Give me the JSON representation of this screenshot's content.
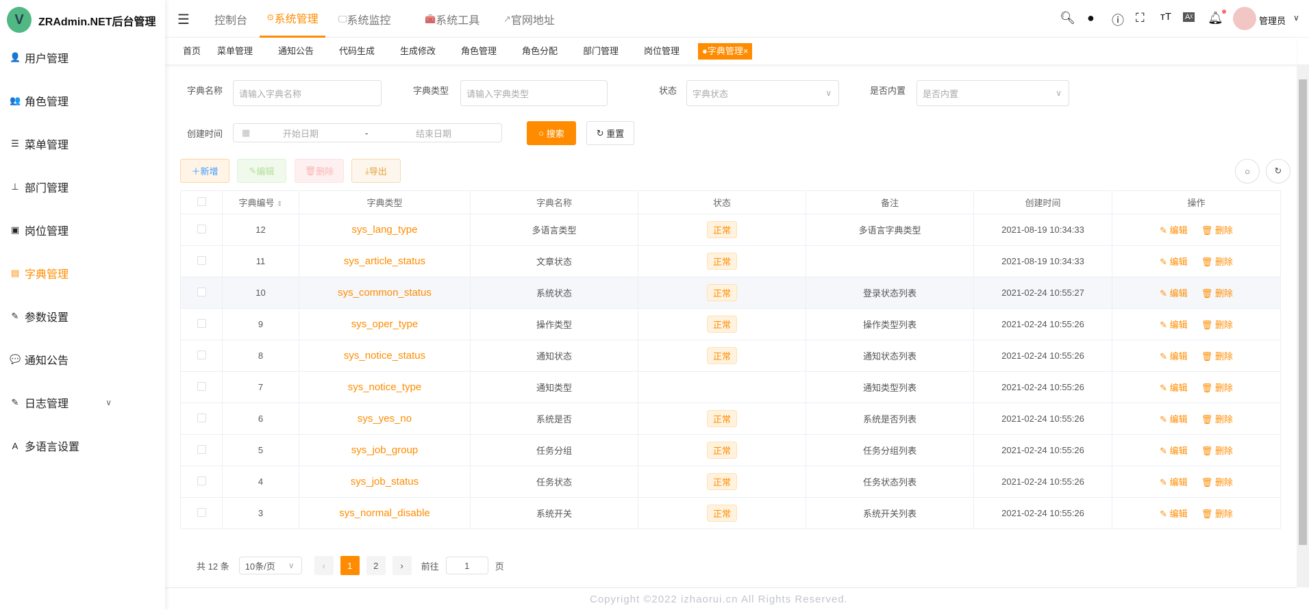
{
  "app": {
    "title": "ZRAdmin.NET后台管理",
    "logo_letter": "V",
    "accent": "#ff8c00"
  },
  "sidebar": {
    "items": [
      {
        "label": "用户管理",
        "icon": "user-icon",
        "glyph": "👤"
      },
      {
        "label": "角色管理",
        "icon": "users-icon",
        "glyph": "👥"
      },
      {
        "label": "菜单管理",
        "icon": "tree-table-icon",
        "glyph": "☰"
      },
      {
        "label": "部门管理",
        "icon": "org-tree-icon",
        "glyph": "⊥"
      },
      {
        "label": "岗位管理",
        "icon": "post-icon",
        "glyph": "▣"
      },
      {
        "label": "字典管理",
        "icon": "dict-icon",
        "glyph": "▤",
        "active": true
      },
      {
        "label": "参数设置",
        "icon": "edit-icon",
        "glyph": "✎"
      },
      {
        "label": "通知公告",
        "icon": "message-icon",
        "glyph": "💬"
      },
      {
        "label": "日志管理",
        "icon": "log-icon",
        "glyph": "✎",
        "expandable": true
      },
      {
        "label": "多语言设置",
        "icon": "language-icon",
        "glyph": "A"
      }
    ]
  },
  "topnav": {
    "items": [
      {
        "label": "控制台"
      },
      {
        "label": "系统管理",
        "active": true
      },
      {
        "label": "系统监控"
      },
      {
        "label": "系统工具"
      },
      {
        "label": "官网地址"
      }
    ],
    "user": "管理员"
  },
  "tags": [
    "首页",
    "菜单管理",
    "通知公告",
    "代码生成",
    "生成修改",
    "角色管理",
    "角色分配",
    "部门管理",
    "岗位管理"
  ],
  "active_tag": "字典管理",
  "filters": {
    "dict_name": {
      "label": "字典名称",
      "placeholder": "请输入字典名称"
    },
    "dict_type": {
      "label": "字典类型",
      "placeholder": "请输入字典类型"
    },
    "status": {
      "label": "状态",
      "placeholder": "字典状态"
    },
    "builtin": {
      "label": "是否内置",
      "placeholder": "是否内置"
    },
    "created": {
      "label": "创建时间",
      "start": "开始日期",
      "sep": "-",
      "end": "结束日期"
    },
    "search": "搜索",
    "reset": "重置"
  },
  "toolbar": {
    "add": "新增",
    "edit": "编辑",
    "delete": "删除",
    "export": "导出"
  },
  "table": {
    "headers": [
      "字典编号",
      "字典类型",
      "字典名称",
      "状态",
      "备注",
      "创建时间",
      "操作"
    ],
    "rows": [
      {
        "id": "12",
        "type": "sys_lang_type",
        "name": "多语言类型",
        "status": "正常",
        "remark": "多语言字典类型",
        "created": "2021-08-19 10:34:33"
      },
      {
        "id": "11",
        "type": "sys_article_status",
        "name": "文章状态",
        "status": "正常",
        "remark": "",
        "created": "2021-08-19 10:34:33"
      },
      {
        "id": "10",
        "type": "sys_common_status",
        "name": "系统状态",
        "status": "正常",
        "remark": "登录状态列表",
        "created": "2021-02-24 10:55:27"
      },
      {
        "id": "9",
        "type": "sys_oper_type",
        "name": "操作类型",
        "status": "正常",
        "remark": "操作类型列表",
        "created": "2021-02-24 10:55:26"
      },
      {
        "id": "8",
        "type": "sys_notice_status",
        "name": "通知状态",
        "status": "正常",
        "remark": "通知状态列表",
        "created": "2021-02-24 10:55:26"
      },
      {
        "id": "7",
        "type": "sys_notice_type",
        "name": "通知类型",
        "status": "",
        "remark": "通知类型列表",
        "created": "2021-02-24 10:55:26"
      },
      {
        "id": "6",
        "type": "sys_yes_no",
        "name": "系统是否",
        "status": "正常",
        "remark": "系统是否列表",
        "created": "2021-02-24 10:55:26"
      },
      {
        "id": "5",
        "type": "sys_job_group",
        "name": "任务分组",
        "status": "正常",
        "remark": "任务分组列表",
        "created": "2021-02-24 10:55:26"
      },
      {
        "id": "4",
        "type": "sys_job_status",
        "name": "任务状态",
        "status": "正常",
        "remark": "任务状态列表",
        "created": "2021-02-24 10:55:26"
      },
      {
        "id": "3",
        "type": "sys_normal_disable",
        "name": "系统开关",
        "status": "正常",
        "remark": "系统开关列表",
        "created": "2021-02-24 10:55:26"
      }
    ],
    "edit": "编辑",
    "delete": "删除"
  },
  "pagination": {
    "total": "共 12 条",
    "page_size": "10条/页",
    "pages": [
      "1",
      "2"
    ],
    "current": "1",
    "goto_label": "前往",
    "goto_value": "1",
    "page_suffix": "页"
  },
  "footer": "Copyright ©2022 izhaorui.cn All Rights Reserved."
}
